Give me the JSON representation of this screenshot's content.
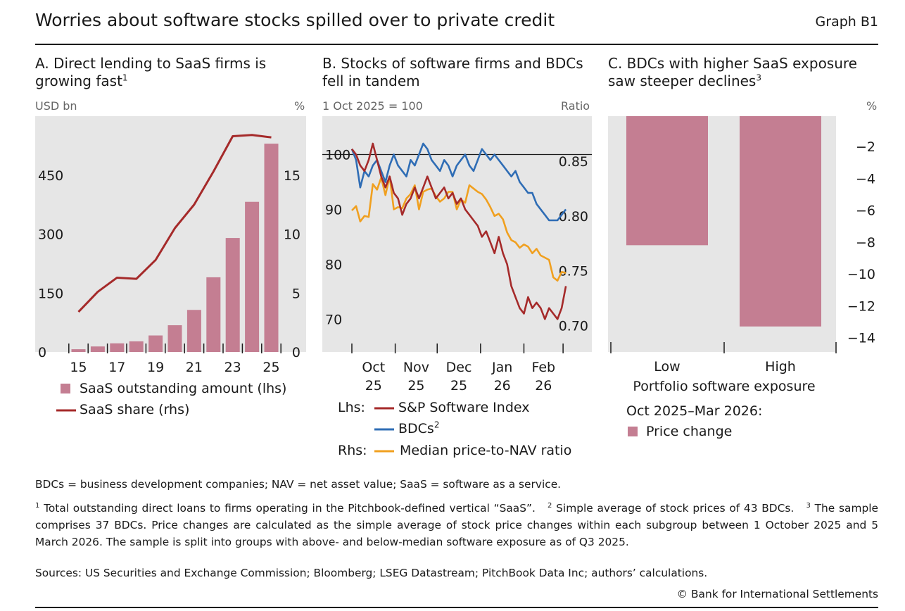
{
  "header": {
    "title": "Worries about software stocks spilled over to private credit",
    "graph_id": "Graph B1"
  },
  "panels": {
    "a": {
      "title_line1": "A. Direct lending to SaaS firms is",
      "title_line2": "growing fast",
      "title_sup": "1",
      "unit_left": "USD bn",
      "unit_right": "%"
    },
    "b": {
      "title_line1": "B. Stocks of software firms and BDCs",
      "title_line2": "fell in tandem",
      "unit_left": "1 Oct 2025 = 100",
      "unit_right": "Ratio"
    },
    "c": {
      "title_line1": "C. BDCs with higher SaaS exposure",
      "title_line2": "saw steeper declines",
      "title_sup": "3",
      "unit_right": "%"
    }
  },
  "legends": {
    "a": [
      {
        "label": "SaaS outstanding amount (lhs)"
      },
      {
        "label": "SaaS share (rhs)"
      }
    ],
    "b": {
      "lhs_label": "Lhs:",
      "rhs_label": "Rhs:",
      "items": [
        {
          "label": "S&P Software Index"
        },
        {
          "label": "BDCs",
          "sup": "2"
        },
        {
          "label": "Median price-to-NAV ratio"
        }
      ]
    },
    "c": {
      "period": "Oct 2025–Mar 2026:",
      "item": "Price change"
    }
  },
  "colors": {
    "bar": "#c47e92",
    "line_red": "#a52a2a",
    "line_blue": "#2f6db5",
    "line_orange": "#f0a020",
    "panel_bg": "#e6e6e6"
  },
  "chart_data": [
    {
      "type": "bar",
      "panel": "A",
      "x": [
        15,
        16,
        17,
        18,
        19,
        20,
        21,
        22,
        23,
        24,
        25
      ],
      "x_tick_labels": [
        "15",
        "17",
        "19",
        "21",
        "23",
        "25"
      ],
      "series": [
        {
          "name": "SaaS outstanding amount (lhs)",
          "type": "bar",
          "axis": "left",
          "values": [
            7,
            14,
            22,
            27,
            42,
            68,
            107,
            190,
            290,
            382,
            530
          ]
        },
        {
          "name": "SaaS share (rhs)",
          "type": "line",
          "axis": "right",
          "values": [
            3.4,
            5.1,
            6.3,
            6.2,
            7.8,
            10.5,
            12.5,
            15.3,
            18.3,
            18.4,
            18.2
          ]
        }
      ],
      "y_left": {
        "lim": [
          0,
          600
        ],
        "ticks": [
          0,
          150,
          300,
          450
        ]
      },
      "y_right": {
        "lim": [
          0,
          20
        ],
        "ticks": [
          0,
          5,
          10,
          15
        ]
      }
    },
    {
      "type": "line",
      "panel": "B",
      "x_tick_labels": [
        [
          "Oct",
          "25"
        ],
        [
          "Nov",
          "25"
        ],
        [
          "Dec",
          "25"
        ],
        [
          "Jan",
          "26"
        ],
        [
          "Feb",
          "26"
        ]
      ],
      "x_range_days": [
        0,
        161
      ],
      "month_start_days": [
        0,
        31,
        61,
        92,
        123,
        151
      ],
      "y_left": {
        "lim": [
          64,
          107
        ],
        "ticks": [
          70,
          80,
          90,
          100
        ]
      },
      "y_right": {
        "lim": [
          0.676,
          0.891
        ],
        "ticks": [
          0.7,
          0.75,
          0.8,
          0.85
        ],
        "tick_labels": [
          "0.70",
          "0.75",
          "0.80",
          "0.85"
        ]
      },
      "reference_line": 100,
      "series": [
        {
          "name": "S&P Software Index",
          "axis": "left",
          "x": [
            0,
            3,
            6,
            9,
            12,
            15,
            18,
            21,
            24,
            27,
            30,
            33,
            36,
            39,
            42,
            45,
            48,
            51,
            54,
            57,
            60,
            63,
            66,
            69,
            72,
            75,
            78,
            81,
            84,
            87,
            90,
            93,
            96,
            99,
            102,
            105,
            108,
            111,
            114,
            117,
            120,
            123,
            126,
            129,
            132,
            135,
            138,
            141,
            144,
            147,
            150,
            153
          ],
          "values": [
            101,
            100,
            98,
            97,
            99,
            102,
            99,
            96,
            94,
            96,
            93,
            92,
            89,
            91,
            92,
            94,
            92,
            94,
            96,
            94,
            92,
            93,
            94,
            92,
            93,
            91,
            92,
            90,
            89,
            88,
            87,
            85,
            86,
            84,
            82,
            85,
            82,
            80,
            76,
            74,
            72,
            71,
            74,
            72,
            73,
            72,
            70,
            72,
            71,
            70,
            72,
            76
          ]
        },
        {
          "name": "BDCs",
          "axis": "left",
          "x": [
            0,
            3,
            6,
            9,
            12,
            15,
            18,
            21,
            24,
            27,
            30,
            33,
            36,
            39,
            42,
            45,
            48,
            51,
            54,
            57,
            60,
            63,
            66,
            69,
            72,
            75,
            78,
            81,
            84,
            87,
            90,
            93,
            96,
            99,
            102,
            105,
            108,
            111,
            114,
            117,
            120,
            123,
            126,
            129,
            132,
            135,
            138,
            141,
            144,
            147,
            150,
            153
          ],
          "values": [
            101,
            99,
            94,
            97,
            96,
            98,
            99,
            97,
            95,
            98,
            100,
            98,
            97,
            96,
            99,
            98,
            100,
            102,
            101,
            99,
            98,
            97,
            99,
            98,
            96,
            98,
            99,
            100,
            98,
            97,
            99,
            101,
            100,
            99,
            100,
            99,
            98,
            97,
            96,
            97,
            95,
            94,
            93,
            93,
            91,
            90,
            89,
            88,
            88,
            88,
            89,
            90
          ]
        },
        {
          "name": "Median price-to-NAV ratio",
          "axis": "right",
          "x": [
            0,
            3,
            6,
            9,
            12,
            15,
            18,
            21,
            24,
            27,
            30,
            33,
            36,
            39,
            42,
            45,
            48,
            51,
            54,
            57,
            60,
            63,
            66,
            69,
            72,
            75,
            78,
            81,
            84,
            87,
            90,
            93,
            96,
            99,
            102,
            105,
            108,
            111,
            114,
            117,
            120,
            123,
            126,
            129,
            132,
            135,
            138,
            141,
            144,
            147,
            150,
            153
          ],
          "values": [
            0.805,
            0.809,
            0.795,
            0.8,
            0.799,
            0.829,
            0.824,
            0.835,
            0.819,
            0.836,
            0.806,
            0.808,
            0.807,
            0.816,
            0.82,
            0.828,
            0.806,
            0.822,
            0.824,
            0.825,
            0.818,
            0.813,
            0.816,
            0.822,
            0.822,
            0.806,
            0.815,
            0.812,
            0.828,
            0.825,
            0.822,
            0.82,
            0.815,
            0.808,
            0.8,
            0.802,
            0.797,
            0.785,
            0.778,
            0.776,
            0.771,
            0.774,
            0.772,
            0.766,
            0.77,
            0.764,
            0.762,
            0.76,
            0.744,
            0.741,
            0.749,
            0.748
          ]
        }
      ]
    },
    {
      "type": "bar",
      "panel": "C",
      "categories": [
        "Low",
        "High"
      ],
      "xlabel": "Portfolio software exposure",
      "series": [
        {
          "name": "Price change",
          "values": [
            -8.2,
            -13.3
          ]
        }
      ],
      "y": {
        "lim": [
          -14.9,
          -0.1
        ],
        "ticks": [
          -2,
          -4,
          -6,
          -8,
          -10,
          -12,
          -14
        ]
      }
    }
  ],
  "notes": {
    "abbreviations": "BDCs = business development companies; NAV = net asset value; SaaS = software as a service.",
    "fn1_mark": "1",
    "fn1": "Total outstanding direct loans to firms operating in the Pitchbook-defined vertical “SaaS”.",
    "fn2_mark": "2",
    "fn2": "Simple average of stock prices of 43 BDCs.",
    "fn3_mark": "3",
    "fn3": "The sample comprises 37 BDCs. Price changes are calculated as the simple average of stock price changes within each subgroup between 1 October 2025 and 5 March 2026. The sample is split into groups with above- and below-median software exposure as of Q3 2025.",
    "sources": "Sources: US Securities and Exchange Commission; Bloomberg; LSEG Datastream; PitchBook Data Inc; authors’ calculations.",
    "copyright": "© Bank for International Settlements"
  }
}
